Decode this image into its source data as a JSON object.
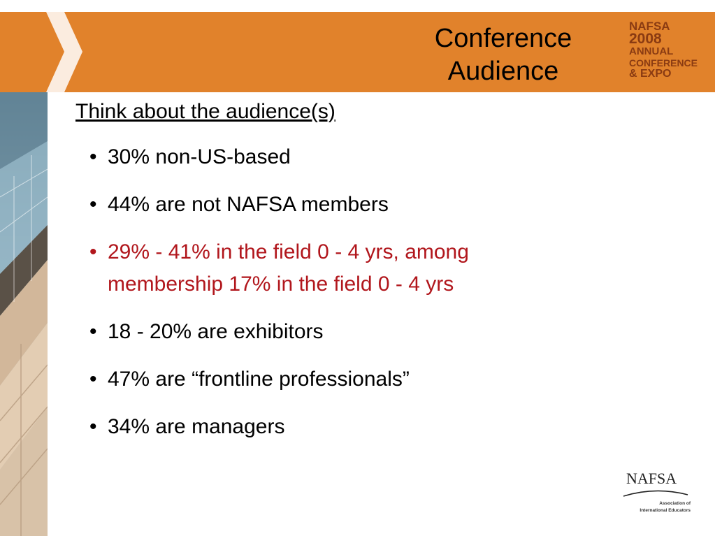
{
  "slide": {
    "title": "Conference\nAudience",
    "event_logo": [
      "NAFSA",
      "2008",
      "ANNUAL",
      "CONFERENCE",
      "& EXPO"
    ],
    "subtitle": "Think about the audience(s)",
    "bullet_glyph": "•",
    "bullets": [
      {
        "text": "30% non-US-based",
        "highlight": false
      },
      {
        "text": "44% are not NAFSA members",
        "highlight": false
      },
      {
        "text": "29% - 41% in the field 0 - 4 yrs, among\nmembership 17% in the field 0 - 4 yrs",
        "highlight": true
      },
      {
        "text": "18 - 20% are exhibitors",
        "highlight": false
      },
      {
        "text": "47% are “frontline professionals”",
        "highlight": false
      },
      {
        "text": "34% are managers",
        "highlight": false
      }
    ],
    "footer_logo": {
      "name": "NAFSA",
      "tagline_1": "Association of",
      "tagline_2": "International Educators"
    }
  },
  "colors": {
    "banner": "#e1822b",
    "highlight_text": "#b1161c",
    "logo_text": "#8a3b12"
  }
}
